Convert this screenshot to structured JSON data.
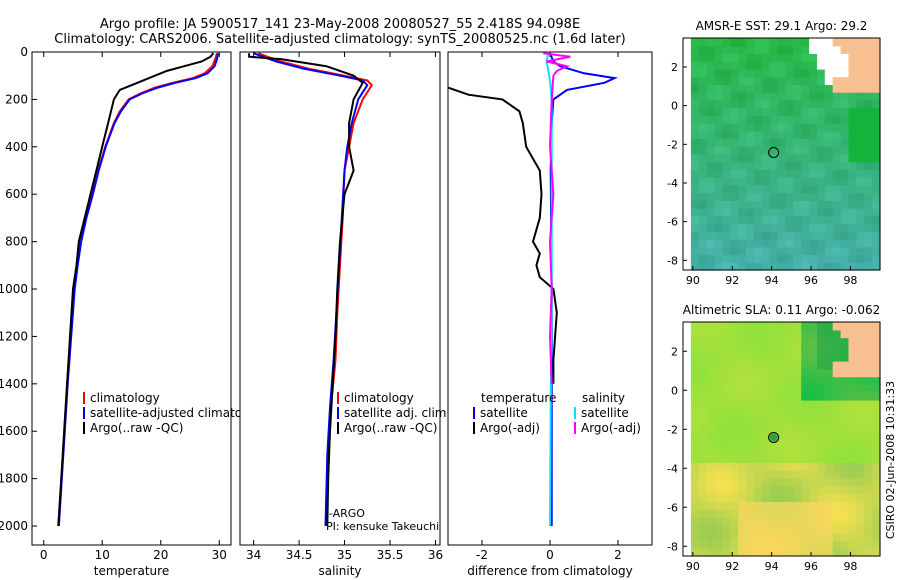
{
  "header": {
    "line1": "Argo profile: JA 5900517_141 23-May-2008 20080527_55 2.418S 94.098E",
    "line2": "Climatology: CARS2006. Satellite-adjusted climatology: synTS_20080525.nc (1.6d later)"
  },
  "side_label": "CSIRO 02-Jun-2008 10:31:33",
  "colors": {
    "climatology": "#ff0000",
    "satellite": "#0000ff",
    "argo": "#000000",
    "salinity_satellite": "#00e5ff",
    "salinity_argo": "#ff00ff",
    "land": "#f8c090",
    "nodata": "#ffffff",
    "sst_base": "#30c050",
    "sla_base": "#a0e030"
  },
  "chart_data": [
    {
      "type": "line",
      "id": "temperature",
      "xlabel": "temperature",
      "ylabel": "",
      "xlim": [
        -2,
        32
      ],
      "ylim": [
        2080,
        0
      ],
      "xticks": [
        0,
        10,
        20,
        30
      ],
      "yticks": [
        0,
        200,
        400,
        600,
        800,
        1000,
        1200,
        1400,
        1600,
        1800,
        2000
      ],
      "legend": [
        "climatology",
        "satellite-adjusted climatology",
        "Argo(..raw -QC)"
      ],
      "series": [
        {
          "name": "climatology",
          "color": "#ff0000",
          "points": [
            [
              29.6,
              5
            ],
            [
              29.3,
              30
            ],
            [
              28.8,
              60
            ],
            [
              27.5,
              90
            ],
            [
              25.5,
              110
            ],
            [
              22,
              130
            ],
            [
              19,
              150
            ],
            [
              16.5,
              175
            ],
            [
              14.5,
              200
            ],
            [
              13,
              250
            ],
            [
              12,
              300
            ],
            [
              10.5,
              400
            ],
            [
              9.3,
              500
            ],
            [
              8.3,
              600
            ],
            [
              7.2,
              700
            ],
            [
              6.3,
              800
            ],
            [
              5.7,
              900
            ],
            [
              5.2,
              1000
            ],
            [
              4.6,
              1200
            ],
            [
              4.0,
              1400
            ],
            [
              3.5,
              1600
            ],
            [
              3.0,
              1800
            ],
            [
              2.5,
              2000
            ]
          ]
        },
        {
          "name": "satellite-adjusted climatology",
          "color": "#0000ff",
          "points": [
            [
              29.8,
              5
            ],
            [
              29.6,
              30
            ],
            [
              29.2,
              60
            ],
            [
              28,
              90
            ],
            [
              26,
              110
            ],
            [
              22.5,
              130
            ],
            [
              19.5,
              150
            ],
            [
              16.8,
              175
            ],
            [
              14.7,
              200
            ],
            [
              13.2,
              250
            ],
            [
              12.1,
              300
            ],
            [
              10.6,
              400
            ],
            [
              9.4,
              500
            ],
            [
              8.4,
              600
            ],
            [
              7.3,
              700
            ],
            [
              6.4,
              800
            ],
            [
              5.8,
              900
            ],
            [
              5.3,
              1000
            ],
            [
              4.7,
              1200
            ],
            [
              4.1,
              1400
            ],
            [
              3.6,
              1600
            ],
            [
              3.1,
              1800
            ],
            [
              2.6,
              2000
            ]
          ]
        },
        {
          "name": "Argo(..raw -QC)",
          "color": "#000000",
          "points": [
            [
              29.0,
              5
            ],
            [
              28.5,
              20
            ],
            [
              27,
              40
            ],
            [
              24,
              60
            ],
            [
              21,
              80
            ],
            [
              18,
              110
            ],
            [
              16,
              130
            ],
            [
              13,
              160
            ],
            [
              12,
              200
            ],
            [
              11,
              300
            ],
            [
              10,
              400
            ],
            [
              9.0,
              500
            ],
            [
              8.0,
              600
            ],
            [
              7.0,
              700
            ],
            [
              6.0,
              800
            ],
            [
              5.6,
              900
            ],
            [
              5.0,
              1000
            ],
            [
              4.5,
              1200
            ],
            [
              4.0,
              1400
            ],
            [
              3.5,
              1600
            ],
            [
              3.0,
              1800
            ],
            [
              2.5,
              2000
            ]
          ]
        }
      ]
    },
    {
      "type": "line",
      "id": "salinity",
      "xlabel": "salinity",
      "xlim": [
        33.85,
        36.05
      ],
      "ylim": [
        2080,
        0
      ],
      "xticks": [
        34,
        34.5,
        35,
        35.5,
        36
      ],
      "legend": [
        "climatology",
        "satellite adj. clim.",
        "Argo(..raw -QC)"
      ],
      "annotation": [
        "J-ARGO",
        "PI: kensuke Takeuchi"
      ],
      "series": [
        {
          "name": "climatology",
          "color": "#ff0000",
          "points": [
            [
              34.05,
              5
            ],
            [
              34.15,
              20
            ],
            [
              34.3,
              40
            ],
            [
              34.6,
              70
            ],
            [
              35.0,
              100
            ],
            [
              35.25,
              120
            ],
            [
              35.3,
              140
            ],
            [
              35.2,
              200
            ],
            [
              35.1,
              300
            ],
            [
              35.05,
              400
            ],
            [
              35.0,
              500
            ],
            [
              34.98,
              700
            ],
            [
              34.95,
              900
            ],
            [
              34.92,
              1100
            ],
            [
              34.9,
              1300
            ],
            [
              34.85,
              1500
            ],
            [
              34.82,
              1700
            ],
            [
              34.8,
              2000
            ]
          ]
        },
        {
          "name": "satellite adj. clim.",
          "color": "#0000ff",
          "points": [
            [
              34.0,
              5
            ],
            [
              34.1,
              20
            ],
            [
              34.25,
              40
            ],
            [
              34.55,
              70
            ],
            [
              34.95,
              100
            ],
            [
              35.2,
              120
            ],
            [
              35.25,
              140
            ],
            [
              35.15,
              200
            ],
            [
              35.08,
              300
            ],
            [
              35.03,
              400
            ],
            [
              35.0,
              500
            ],
            [
              34.97,
              700
            ],
            [
              34.94,
              900
            ],
            [
              34.91,
              1100
            ],
            [
              34.88,
              1300
            ],
            [
              34.84,
              1500
            ],
            [
              34.81,
              1700
            ],
            [
              34.79,
              2000
            ]
          ]
        },
        {
          "name": "Argo(..raw -QC)",
          "color": "#000000",
          "points": [
            [
              33.95,
              5
            ],
            [
              33.95,
              20
            ],
            [
              34.3,
              30
            ],
            [
              34.8,
              60
            ],
            [
              35.1,
              100
            ],
            [
              35.2,
              130
            ],
            [
              35.1,
              200
            ],
            [
              35.05,
              300
            ],
            [
              35.05,
              400
            ],
            [
              35.1,
              500
            ],
            [
              35.0,
              600
            ],
            [
              34.95,
              800
            ],
            [
              34.92,
              1000
            ],
            [
              34.9,
              1200
            ],
            [
              34.87,
              1400
            ],
            [
              34.84,
              1600
            ],
            [
              34.82,
              1800
            ],
            [
              34.81,
              2000
            ]
          ]
        }
      ]
    },
    {
      "type": "line",
      "id": "difference",
      "xlabel": "difference from climatology",
      "xlim": [
        -3,
        3
      ],
      "ylim": [
        2080,
        0
      ],
      "xticks": [
        -2,
        0,
        2
      ],
      "legend_left_title": "temperature",
      "legend_right_title": "salinity",
      "legend_left": [
        "satellite",
        "Argo(-adj)"
      ],
      "legend_right": [
        "satellite",
        "Argo(-adj)"
      ],
      "series": [
        {
          "name": "temperature satellite",
          "color": "#0000ff",
          "points": [
            [
              0,
              5
            ],
            [
              0.1,
              40
            ],
            [
              0.3,
              60
            ],
            [
              1.0,
              90
            ],
            [
              1.9,
              110
            ],
            [
              1.6,
              130
            ],
            [
              0.5,
              160
            ],
            [
              0.1,
              200
            ],
            [
              0.05,
              300
            ],
            [
              0.02,
              500
            ],
            [
              0.05,
              1000
            ],
            [
              0.05,
              1500
            ],
            [
              0.05,
              2000
            ]
          ]
        },
        {
          "name": "temperature Argo(-adj)",
          "color": "#000000",
          "points": [
            [
              -3,
              150
            ],
            [
              -2.4,
              180
            ],
            [
              -1.4,
              200
            ],
            [
              -0.9,
              250
            ],
            [
              -0.8,
              300
            ],
            [
              -0.7,
              400
            ],
            [
              -0.5,
              450
            ],
            [
              -0.3,
              500
            ],
            [
              -0.25,
              600
            ],
            [
              -0.3,
              700
            ],
            [
              -0.5,
              800
            ],
            [
              -0.3,
              850
            ],
            [
              -0.4,
              900
            ],
            [
              -0.3,
              950
            ],
            [
              0.1,
              1000
            ],
            [
              0.2,
              1100
            ],
            [
              0.15,
              1200
            ],
            [
              0.1,
              1300
            ],
            [
              0.1,
              1400
            ]
          ]
        },
        {
          "name": "salinity satellite",
          "color": "#00e5ff",
          "points": [
            [
              -0.05,
              5
            ],
            [
              -0.1,
              40
            ],
            [
              -0.05,
              80
            ],
            [
              0,
              120
            ],
            [
              0.05,
              200
            ],
            [
              0.05,
              500
            ],
            [
              0.05,
              1000
            ],
            [
              0.02,
              1500
            ],
            [
              0.0,
              2000
            ]
          ]
        },
        {
          "name": "salinity Argo(-adj)",
          "color": "#ff00ff",
          "points": [
            [
              -0.2,
              5
            ],
            [
              0.6,
              20
            ],
            [
              -0.1,
              40
            ],
            [
              0.5,
              60
            ],
            [
              0.2,
              80
            ],
            [
              0.1,
              100
            ],
            [
              0.05,
              200
            ],
            [
              0.0,
              400
            ],
            [
              0.1,
              600
            ],
            [
              0.0,
              800
            ],
            [
              0.05,
              1000
            ],
            [
              0.0,
              1200
            ],
            [
              0.05,
              1400
            ]
          ]
        }
      ]
    },
    {
      "type": "heatmap",
      "id": "sst_map",
      "title": "AMSR-E SST: 29.1 Argo: 29.2",
      "xlim": [
        89.5,
        99.5
      ],
      "ylim": [
        -8.5,
        3.5
      ],
      "xticks": [
        90,
        92,
        94,
        96,
        98
      ],
      "yticks": [
        2,
        0,
        -2,
        -4,
        -6,
        -8
      ],
      "argo_position": [
        94.1,
        -2.42
      ]
    },
    {
      "type": "heatmap",
      "id": "sla_map",
      "title": "Altimetric SLA: 0.11 Argo: -0.062",
      "xlim": [
        89.5,
        99.5
      ],
      "ylim": [
        -8.5,
        3.5
      ],
      "xticks": [
        90,
        92,
        94,
        96,
        98
      ],
      "yticks": [
        2,
        0,
        -2,
        -4,
        -6,
        -8
      ],
      "argo_position": [
        94.1,
        -2.42
      ]
    }
  ]
}
